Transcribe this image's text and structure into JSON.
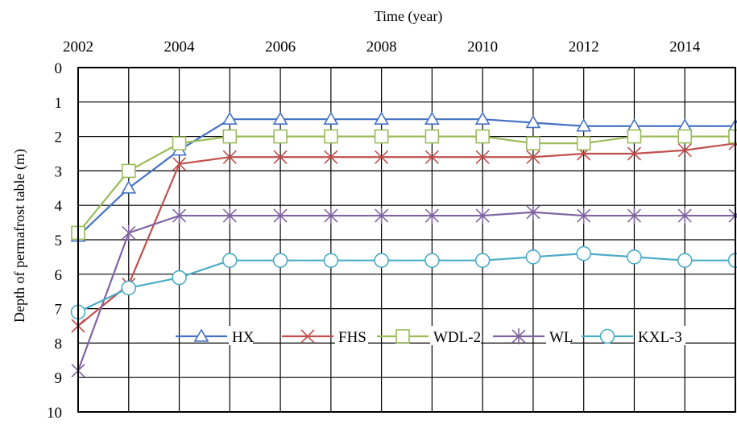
{
  "chart_data": {
    "type": "line",
    "title": "",
    "xlabel": "Time (year)",
    "ylabel": "Depth of permafrost table (m)",
    "x_axis_position": "top",
    "y_axis_inverted": true,
    "xlim": [
      2002,
      2015
    ],
    "ylim": [
      0,
      10
    ],
    "x_ticks": [
      "2002",
      "2004",
      "2006",
      "2008",
      "2010",
      "2012",
      "2014"
    ],
    "y_ticks": [
      "0",
      "1",
      "2",
      "3",
      "4",
      "5",
      "6",
      "7",
      "8",
      "9",
      "10"
    ],
    "grid": true,
    "legend_position": "bottom-right inside",
    "x": [
      2002,
      2003,
      2004,
      2005,
      2006,
      2007,
      2008,
      2009,
      2010,
      2011,
      2012,
      2013,
      2014,
      2015
    ],
    "series": [
      {
        "name": "HX",
        "color": "#4472C4",
        "marker": "triangle",
        "values": [
          4.9,
          3.5,
          2.4,
          1.5,
          1.5,
          1.5,
          1.5,
          1.5,
          1.5,
          1.6,
          1.7,
          1.7,
          1.7,
          1.7
        ]
      },
      {
        "name": "FHS",
        "color": "#C0504D",
        "marker": "x",
        "values": [
          7.5,
          6.3,
          2.8,
          2.6,
          2.6,
          2.6,
          2.6,
          2.6,
          2.6,
          2.6,
          2.5,
          2.5,
          2.4,
          2.2
        ]
      },
      {
        "name": "WDL-2",
        "color": "#9BBB59",
        "marker": "square",
        "values": [
          4.8,
          3.0,
          2.2,
          2.0,
          2.0,
          2.0,
          2.0,
          2.0,
          2.0,
          2.2,
          2.2,
          2.0,
          2.0,
          2.0
        ]
      },
      {
        "name": "WL",
        "color": "#8064A2",
        "marker": "star",
        "values": [
          8.8,
          4.8,
          4.3,
          4.3,
          4.3,
          4.3,
          4.3,
          4.3,
          4.3,
          4.2,
          4.3,
          4.3,
          4.3,
          4.3
        ]
      },
      {
        "name": "KXL-3",
        "color": "#4BACC6",
        "marker": "circle",
        "values": [
          7.1,
          6.4,
          6.1,
          5.6,
          5.6,
          5.6,
          5.6,
          5.6,
          5.6,
          5.5,
          5.4,
          5.5,
          5.6,
          5.6
        ]
      }
    ]
  }
}
